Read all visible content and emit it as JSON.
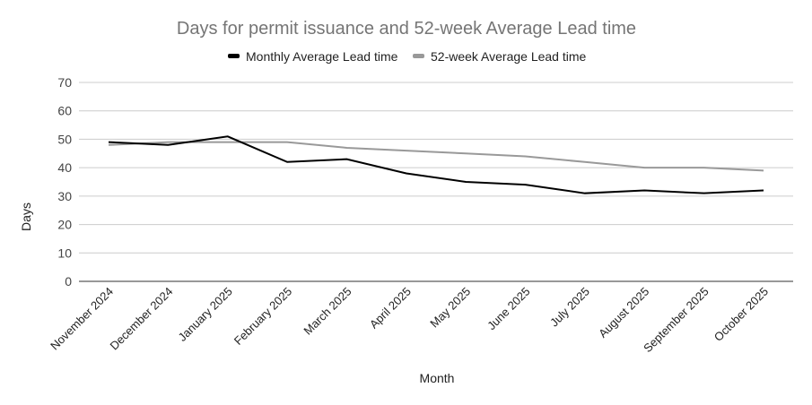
{
  "chart_data": {
    "type": "line",
    "title": "Days for permit issuance and 52-week Average Lead time",
    "xlabel": "Month",
    "ylabel": "Days",
    "ylim": [
      0,
      70
    ],
    "yticks": [
      0,
      10,
      20,
      30,
      40,
      50,
      60,
      70
    ],
    "grid": true,
    "legend": "top",
    "categories": [
      "November 2024",
      "December 2024",
      "January 2025",
      "February 2025",
      "March 2025",
      "April 2025",
      "May 2025",
      "June 2025",
      "July 2025",
      "August 2025",
      "September 2025",
      "October 2025"
    ],
    "series": [
      {
        "name": "Monthly Average Lead time",
        "color": "#000000",
        "values": [
          49,
          48,
          51,
          42,
          43,
          38,
          35,
          34,
          31,
          32,
          31,
          32
        ]
      },
      {
        "name": "52-week Average Lead time",
        "color": "#999999",
        "values": [
          48,
          49,
          49,
          49,
          47,
          46,
          45,
          44,
          42,
          40,
          40,
          39
        ]
      }
    ]
  }
}
